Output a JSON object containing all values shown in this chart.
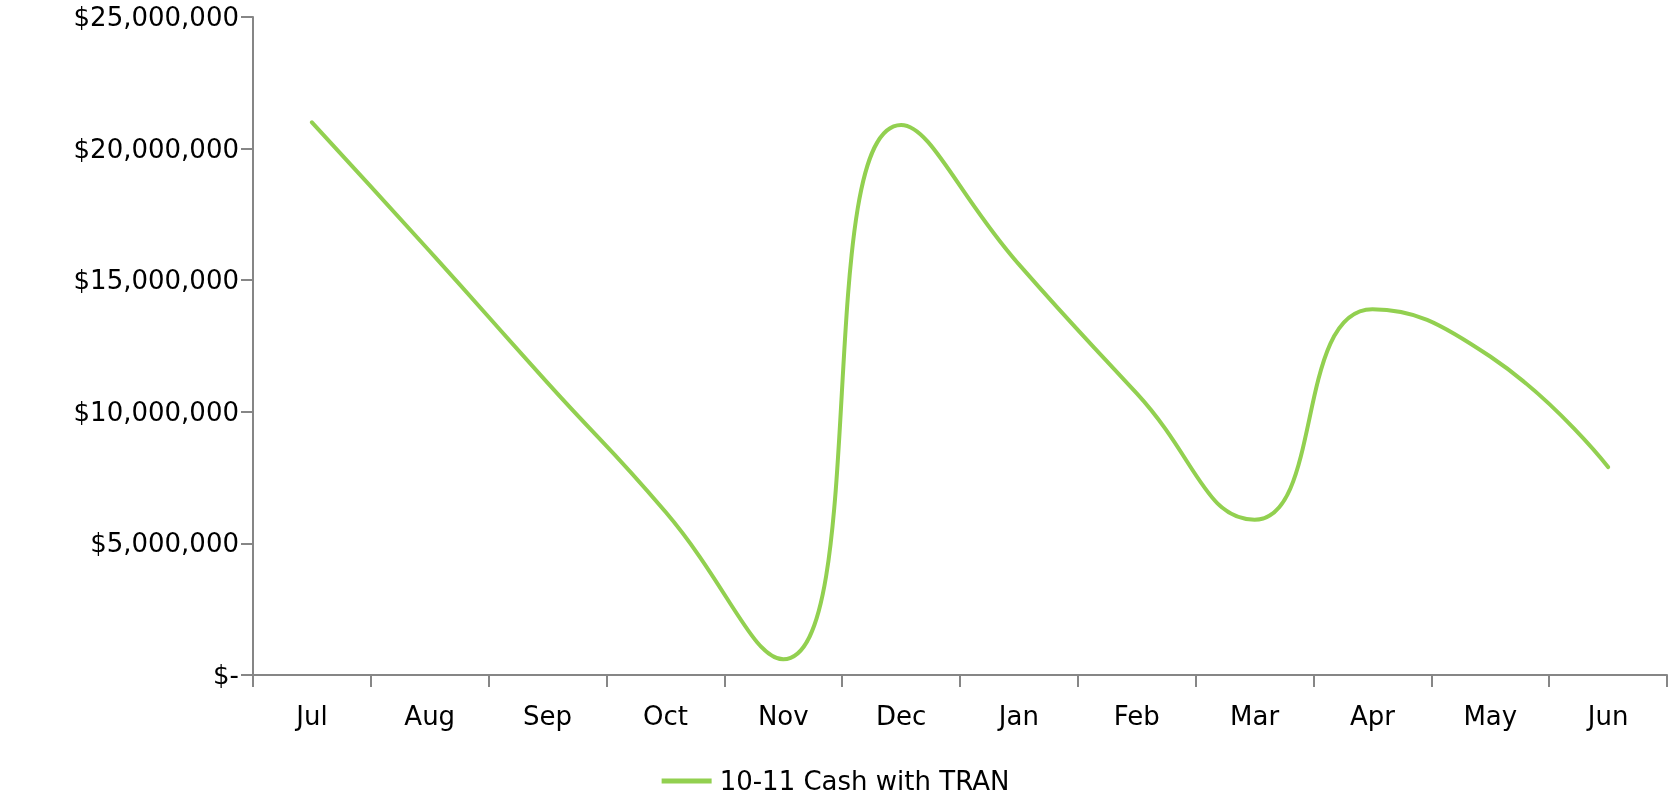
{
  "chart_data": {
    "type": "line",
    "categories": [
      "Jul",
      "Aug",
      "Sep",
      "Oct",
      "Nov",
      "Dec",
      "Jan",
      "Feb",
      "Mar",
      "Apr",
      "May",
      "Jun"
    ],
    "series": [
      {
        "name": "10-11 Cash with TRAN",
        "color": "#92d050",
        "values": [
          21000000,
          16100000,
          11100000,
          6200000,
          600000,
          20900000,
          15600000,
          10700000,
          5900000,
          13900000,
          12100000,
          7900000
        ]
      }
    ],
    "ylim": [
      0,
      25000000
    ],
    "yticks": [
      {
        "value": 0,
        "label": "$-"
      },
      {
        "value": 5000000,
        "label": "$5,000,000"
      },
      {
        "value": 10000000,
        "label": "$10,000,000"
      },
      {
        "value": 15000000,
        "label": "$15,000,000"
      },
      {
        "value": 20000000,
        "label": "$20,000,000"
      },
      {
        "value": 25000000,
        "label": "$25,000,000"
      }
    ],
    "grid": false,
    "legend": "bottom",
    "marker": "none",
    "line_style": "solid"
  }
}
